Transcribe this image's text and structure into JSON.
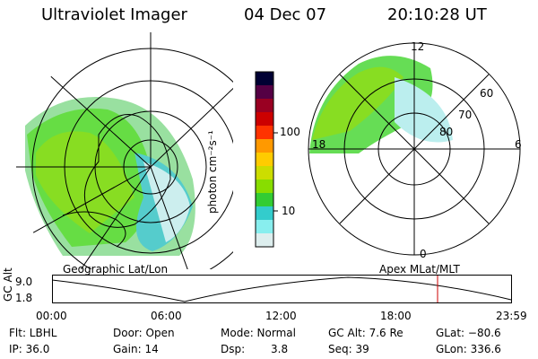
{
  "header": {
    "title": "Ultraviolet Imager",
    "date": "04 Dec 07",
    "time": "20:10:28 UT"
  },
  "left_panel": {
    "caption": "Geographic Lat/Lon"
  },
  "right_panel": {
    "caption": "Apex MLat/MLT",
    "mlt_labels": [
      "12",
      "18",
      "6",
      "0"
    ],
    "lat_labels": [
      "60",
      "70",
      "80"
    ]
  },
  "colorbar": {
    "unit_label": "photon cm⁻²s⁻¹",
    "ticks": [
      "100",
      "10"
    ],
    "colors": [
      "#000033",
      "#550044",
      "#990022",
      "#cc0000",
      "#ff3300",
      "#ff9900",
      "#ffcc00",
      "#ccdd00",
      "#88dd00",
      "#33cc33",
      "#33cccc",
      "#88eeee",
      "#ddeeee"
    ]
  },
  "altitude_plot": {
    "ylabel": "GC Alt",
    "ymax_label": "9.0",
    "ymin_label": "1.8",
    "x_labels": [
      "00:00",
      "06:00",
      "12:00",
      "18:00",
      "23:59"
    ],
    "marker_color": "#cc0000"
  },
  "info": {
    "filter": "Flt: LBHL",
    "ip": "IP: 36.0",
    "door": "Door: Open",
    "gain": "Gain: 14",
    "mode": "Mode: Normal",
    "dsp_label": "Dsp:",
    "dsp_value": "3.8",
    "gc_alt": "GC Alt: 7.6 Re",
    "seq": "Seq: 39",
    "glat": "GLat: −80.6",
    "glon": "GLon: 336.6"
  }
}
